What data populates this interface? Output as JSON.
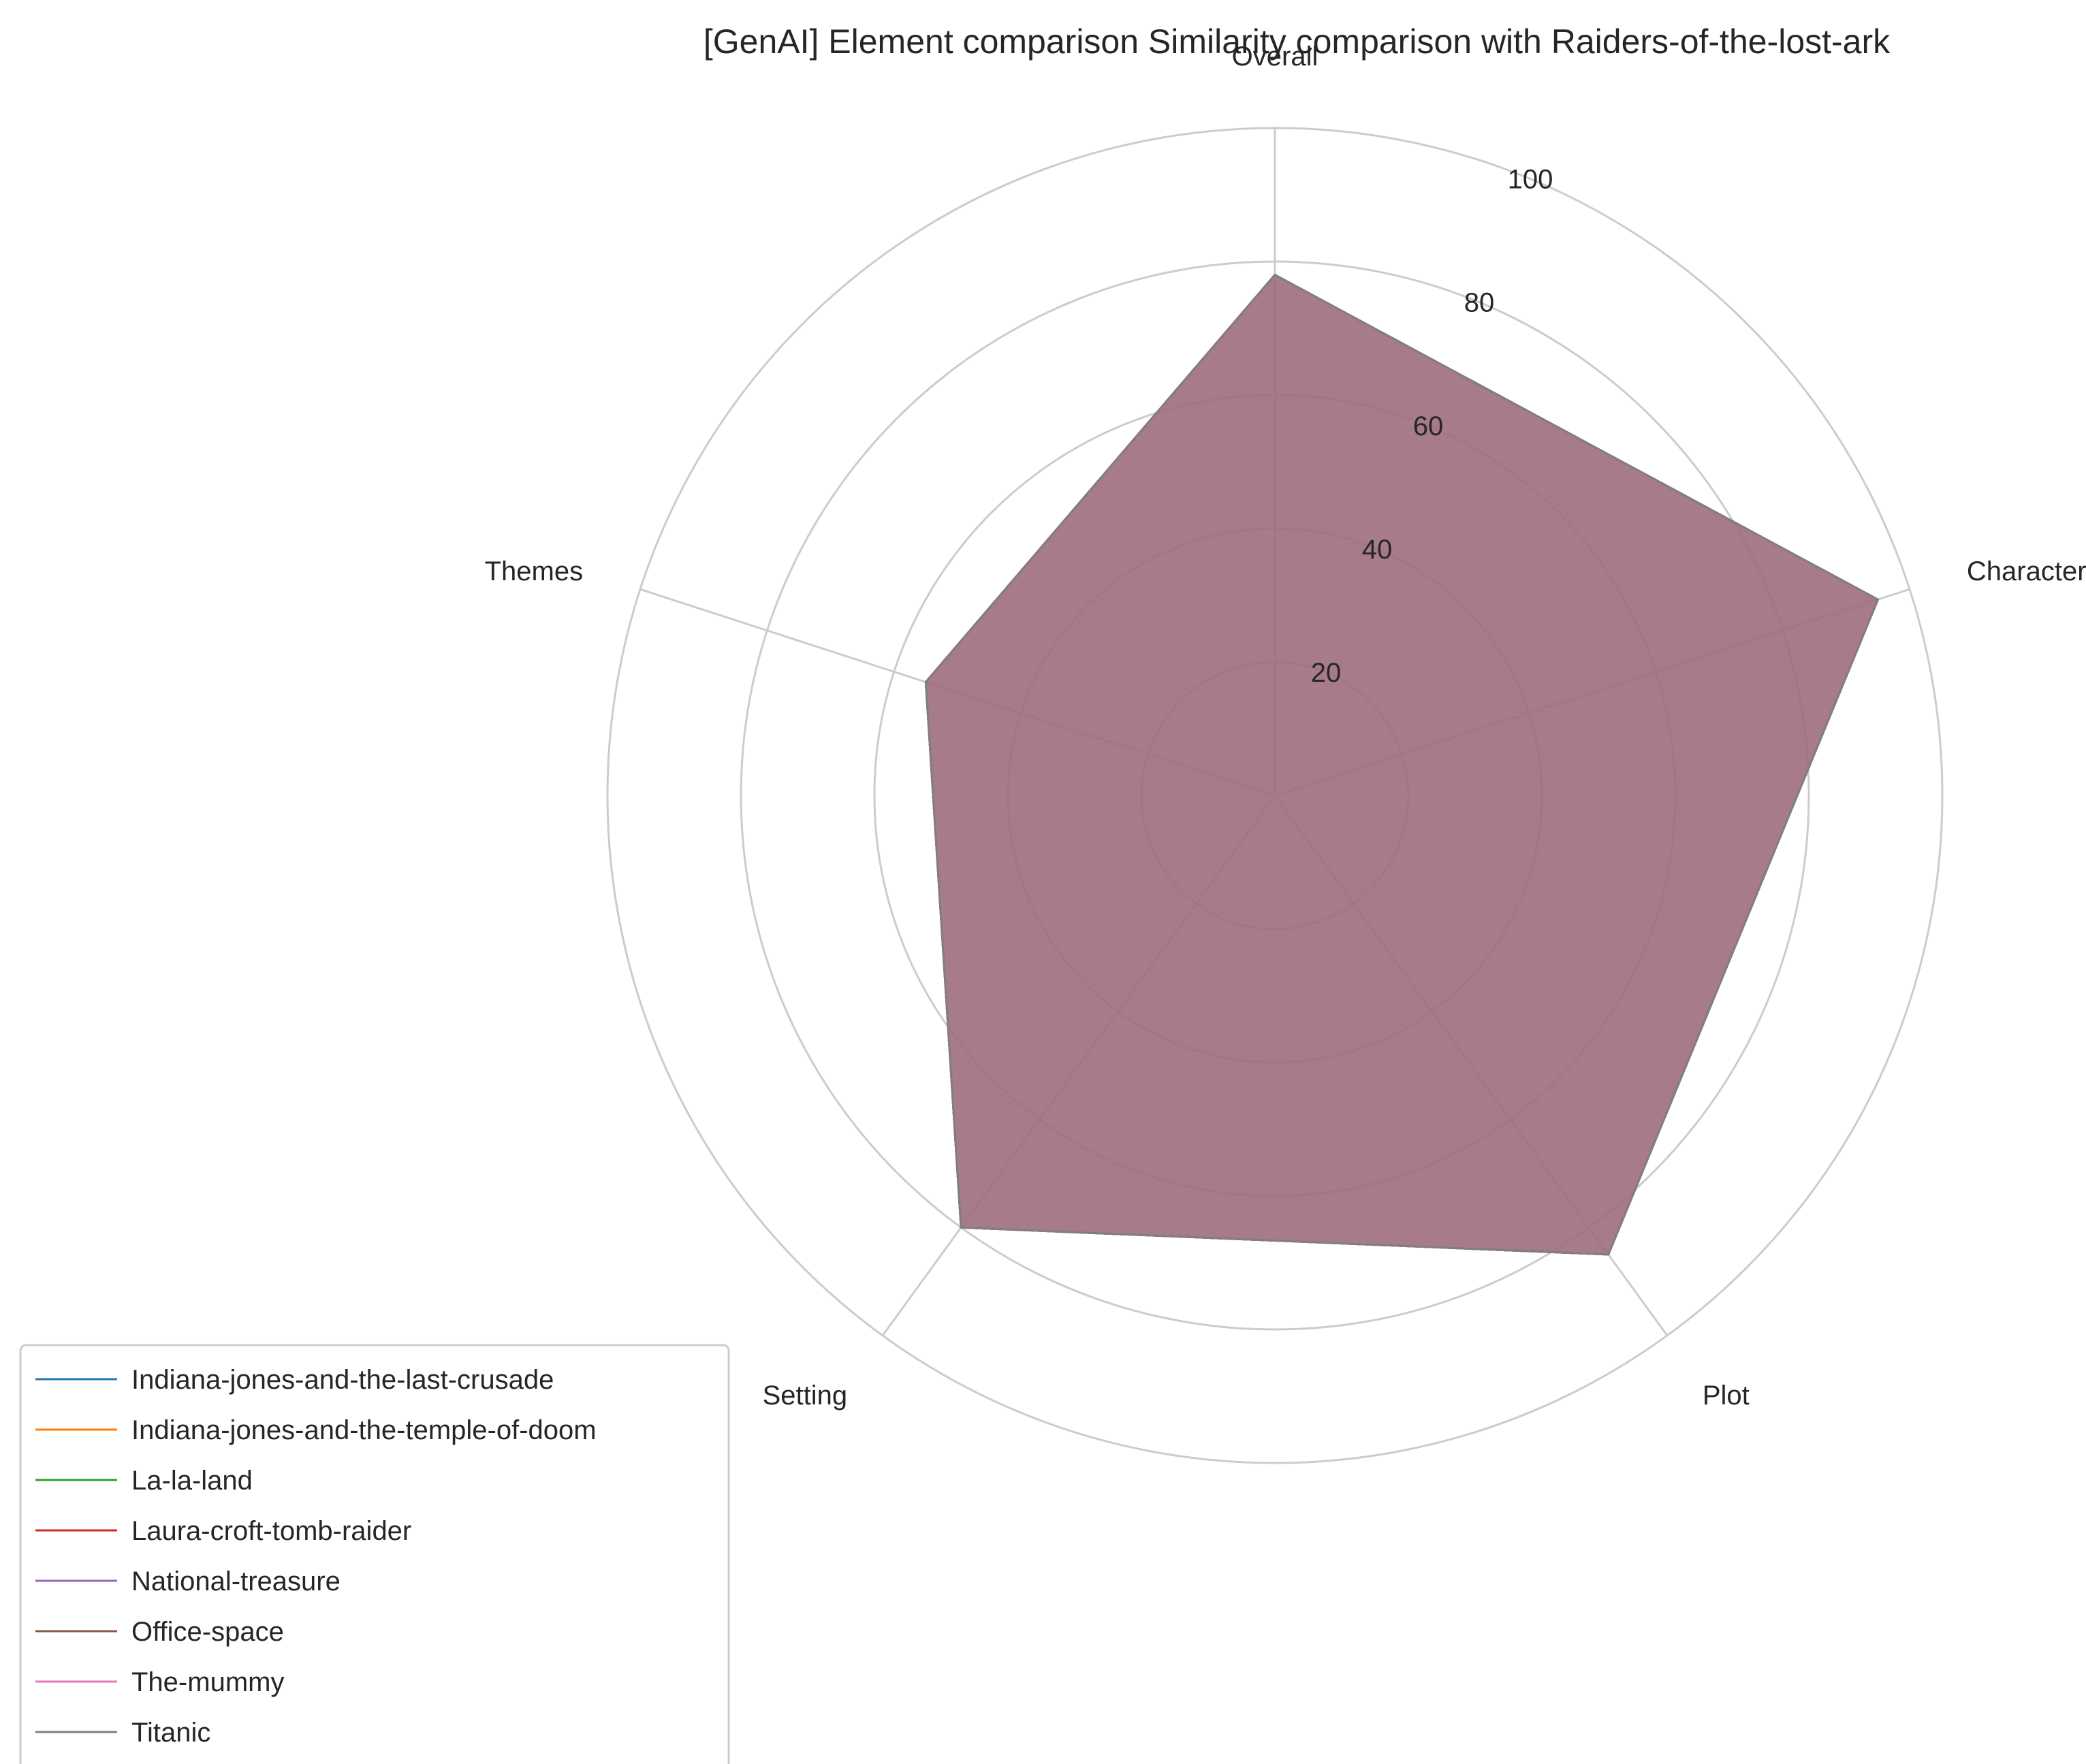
{
  "chart_data": {
    "type": "radar",
    "title": "[GenAI] Element comparison Similarity comparison with Raiders-of-the-lost-ark",
    "axes": [
      "Overall",
      "Characters",
      "Plot",
      "Setting",
      "Themes"
    ],
    "rlim": [
      0,
      100
    ],
    "rticks": [
      20,
      40,
      60,
      80,
      100
    ],
    "grid": true,
    "legend_position": "lower-left",
    "series": [
      {
        "name": "Indiana-jones-and-the-last-crusade",
        "color": "#1f77b4",
        "values": [
          78,
          95,
          85,
          80,
          55
        ]
      },
      {
        "name": "Indiana-jones-and-the-temple-of-doom",
        "color": "#ff7f0e",
        "values": [
          78,
          95,
          85,
          80,
          55
        ]
      },
      {
        "name": "La-la-land",
        "color": "#2ca02c",
        "values": [
          78,
          95,
          85,
          80,
          55
        ]
      },
      {
        "name": "Laura-croft-tomb-raider",
        "color": "#d62728",
        "values": [
          78,
          95,
          85,
          80,
          55
        ]
      },
      {
        "name": "National-treasure",
        "color": "#9467bd",
        "values": [
          78,
          95,
          85,
          80,
          55
        ]
      },
      {
        "name": "Office-space",
        "color": "#8c564b",
        "values": [
          78,
          95,
          85,
          80,
          55
        ]
      },
      {
        "name": "The-mummy",
        "color": "#e377c2",
        "values": [
          78,
          95,
          85,
          80,
          55
        ]
      },
      {
        "name": "Titanic",
        "color": "#7f7f7f",
        "values": [
          78,
          95,
          85,
          80,
          55
        ]
      }
    ]
  }
}
